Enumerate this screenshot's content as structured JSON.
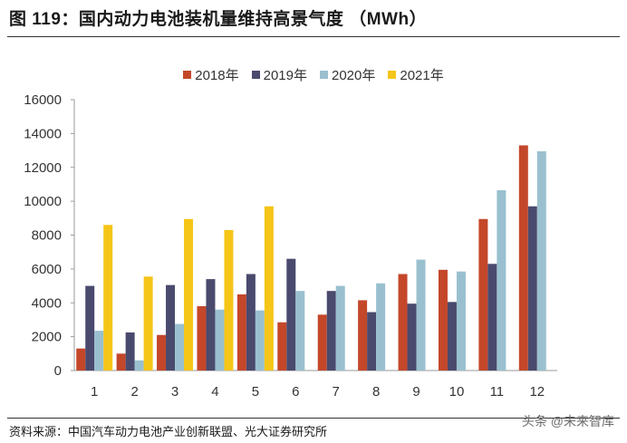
{
  "figure": {
    "title": "图 119：国内动力电池装机量维持高景气度 （MWh）",
    "source": "资料来源：中国汽车动力电池产业创新联盟、光大证券研究所",
    "watermark": "头条 @未来智库"
  },
  "chart_data": {
    "type": "bar",
    "categories": [
      "1",
      "2",
      "3",
      "4",
      "5",
      "6",
      "7",
      "8",
      "9",
      "10",
      "11",
      "12"
    ],
    "series": [
      {
        "name": "2018年",
        "color": "#c4472a",
        "values": [
          1300,
          1000,
          2100,
          3800,
          4500,
          2850,
          3300,
          4150,
          5700,
          5950,
          8950,
          13300
        ]
      },
      {
        "name": "2019年",
        "color": "#4a4a6e",
        "values": [
          5000,
          2250,
          5050,
          5400,
          5700,
          6600,
          4700,
          3450,
          3950,
          4050,
          6300,
          9700
        ]
      },
      {
        "name": "2020年",
        "color": "#9ac0cf",
        "values": [
          2350,
          600,
          2750,
          3600,
          3550,
          4700,
          5000,
          5150,
          6550,
          5850,
          10650,
          12950
        ]
      },
      {
        "name": "2021年",
        "color": "#f5c518",
        "values": [
          8600,
          5550,
          8950,
          8300,
          9700,
          null,
          null,
          null,
          null,
          null,
          null,
          null
        ]
      }
    ],
    "xlabel": "",
    "ylabel": "",
    "ylim": [
      0,
      16000
    ],
    "yticks": [
      "0",
      "2000",
      "4000",
      "6000",
      "8000",
      "10000",
      "12000",
      "14000",
      "16000"
    ],
    "grid": false,
    "legend_position": "top"
  }
}
